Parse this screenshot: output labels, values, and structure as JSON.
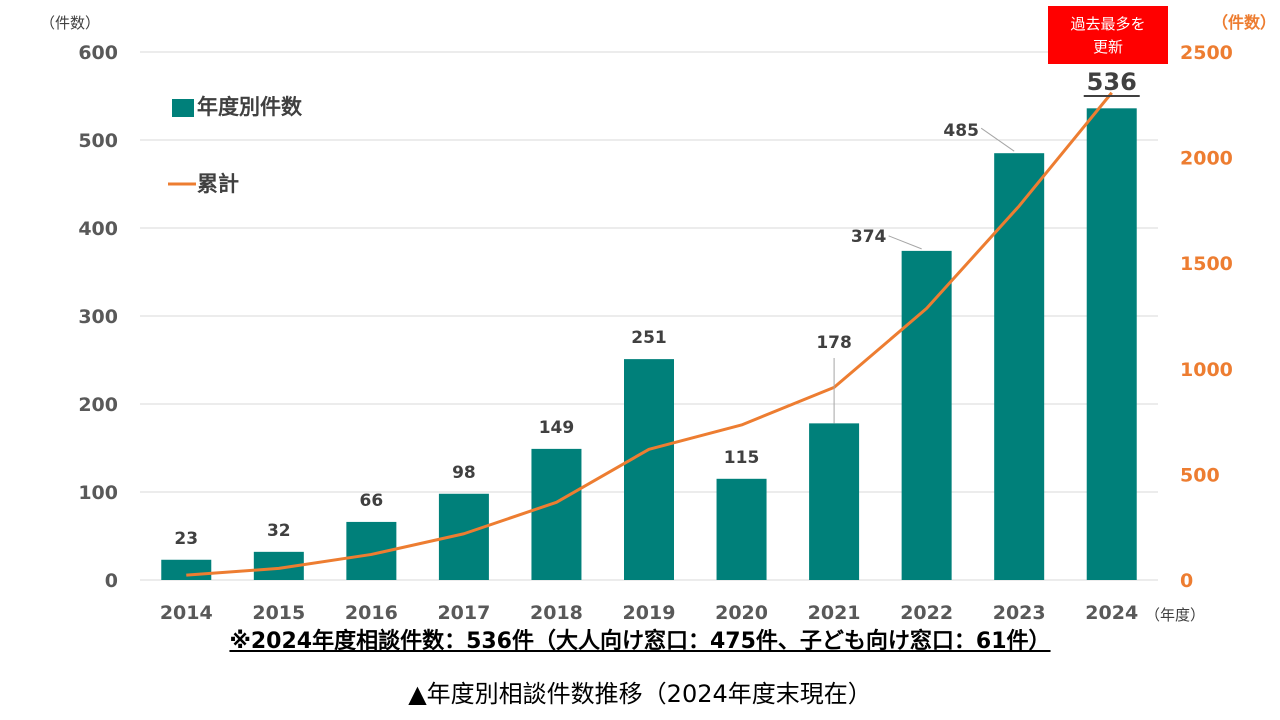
{
  "chart_data": {
    "type": "bar",
    "categories": [
      "2014",
      "2015",
      "2016",
      "2017",
      "2018",
      "2019",
      "2020",
      "2021",
      "2022",
      "2023",
      "2024"
    ],
    "series": [
      {
        "name": "年度別件数",
        "type": "bar",
        "axis": "left",
        "values": [
          23,
          32,
          66,
          98,
          149,
          251,
          115,
          178,
          374,
          485,
          536
        ],
        "color": "#00807A"
      },
      {
        "name": "累計",
        "type": "line",
        "axis": "right",
        "values": [
          23,
          55,
          121,
          219,
          368,
          619,
          734,
          912,
          1286,
          1771,
          2307
        ],
        "color": "#ED7D31"
      }
    ],
    "ylim": [
      0,
      600
    ],
    "yticks": [
      "0",
      "100",
      "200",
      "300",
      "400",
      "500",
      "600"
    ],
    "y2lim": [
      0,
      2500
    ],
    "y2ticks": [
      "0",
      "500",
      "1000",
      "1500",
      "2000",
      "2500"
    ],
    "ylabel": "（件数）",
    "y2label": "（件数）",
    "xunit": "（年度）",
    "grid": true,
    "legend": "top-left",
    "annotation": {
      "text": "過去最多を\n更新",
      "color": "#FF0000",
      "category": "2024"
    }
  },
  "note_text": "※2024年度相談件数：536件（大人向け窓口：475件、子ども向け窓口：61件）",
  "caption_text": "▲年度別相談件数推移（2024年度末現在）"
}
